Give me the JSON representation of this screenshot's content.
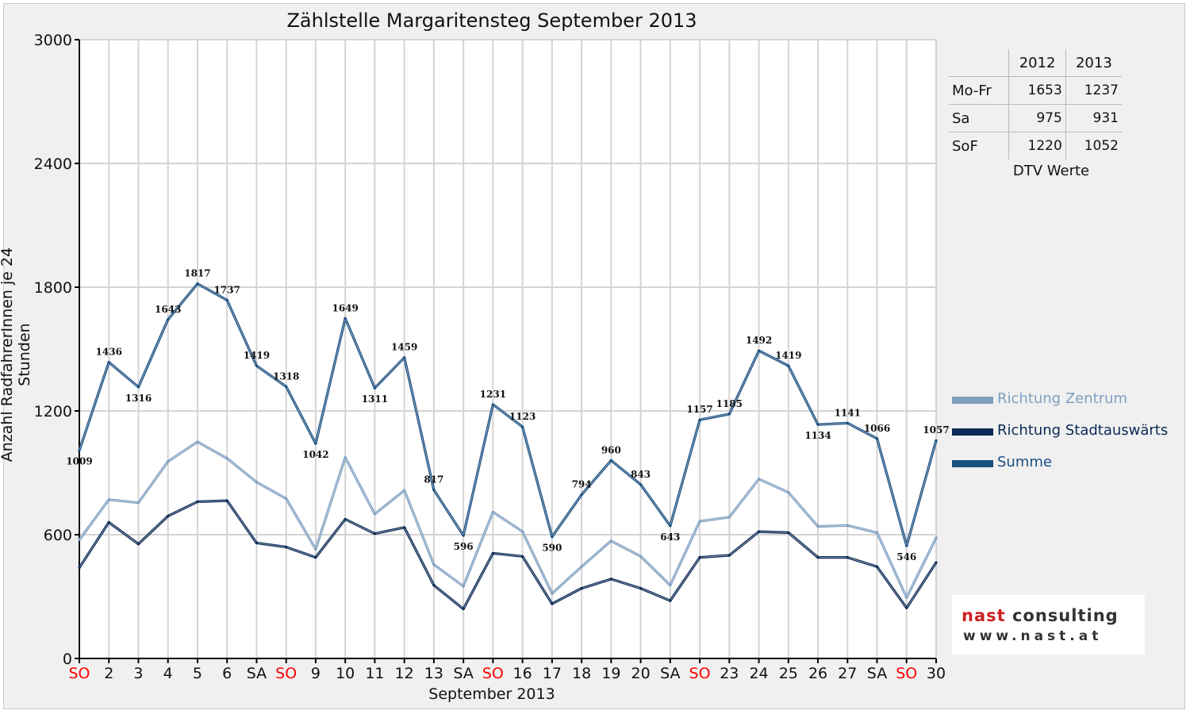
{
  "chart_data": {
    "type": "line",
    "title": "Zählstelle Margaritensteg September 2013",
    "xlabel": "September 2013",
    "ylabel": "Anzahl RadfahrerInnen je 24 Stunden",
    "ylim": [
      0,
      3000
    ],
    "yticks": [
      0,
      600,
      1200,
      1800,
      2400,
      3000
    ],
    "grid": true,
    "legend": "right",
    "categories": [
      "SO",
      "2",
      "3",
      "4",
      "5",
      "6",
      "SA",
      "SO",
      "9",
      "10",
      "11",
      "12",
      "13",
      "SA",
      "SO",
      "16",
      "17",
      "18",
      "19",
      "20",
      "SA",
      "SO",
      "23",
      "24",
      "25",
      "26",
      "27",
      "SA",
      "SO",
      "30"
    ],
    "weekend_categories": [
      0,
      7,
      14,
      21,
      28
    ],
    "series": [
      {
        "name": "Richtung Zentrum",
        "color": "#7f9fc0",
        "values": [
          575,
          770,
          755,
          955,
          1050,
          970,
          855,
          775,
          530,
          975,
          700,
          815,
          455,
          350,
          710,
          615,
          315,
          445,
          570,
          495,
          355,
          665,
          685,
          870,
          805,
          640,
          645,
          610,
          295,
          585
        ]
      },
      {
        "name": "Richtung Stadtauswärts",
        "color": "#0c2a55",
        "values": [
          440,
          660,
          555,
          690,
          760,
          765,
          560,
          540,
          490,
          675,
          605,
          635,
          355,
          240,
          510,
          495,
          265,
          340,
          385,
          340,
          280,
          490,
          500,
          615,
          610,
          490,
          490,
          445,
          245,
          465
        ]
      },
      {
        "name": "Summe",
        "color": "#1a4f80",
        "values": [
          1009,
          1436,
          1316,
          1643,
          1817,
          1737,
          1419,
          1318,
          1042,
          1649,
          1311,
          1459,
          817,
          596,
          1231,
          1123,
          590,
          794,
          960,
          843,
          643,
          1157,
          1185,
          1492,
          1419,
          1134,
          1141,
          1066,
          546,
          1057
        ]
      }
    ]
  },
  "dtv_table": {
    "columns": [
      "2012",
      "2013"
    ],
    "rows": [
      {
        "label": "Mo-Fr",
        "values": [
          "1653",
          "1237"
        ]
      },
      {
        "label": "Sa",
        "values": [
          "975",
          "931"
        ]
      },
      {
        "label": "SoF",
        "values": [
          "1220",
          "1052"
        ]
      }
    ],
    "caption": "DTV Werte"
  },
  "colors": {
    "weekend_label": "#ff0000",
    "grid": "#d4d4d4",
    "axis": "#000000"
  },
  "logo": {
    "word1": "nast",
    "word2": "consulting",
    "url": "www.nast.at"
  }
}
